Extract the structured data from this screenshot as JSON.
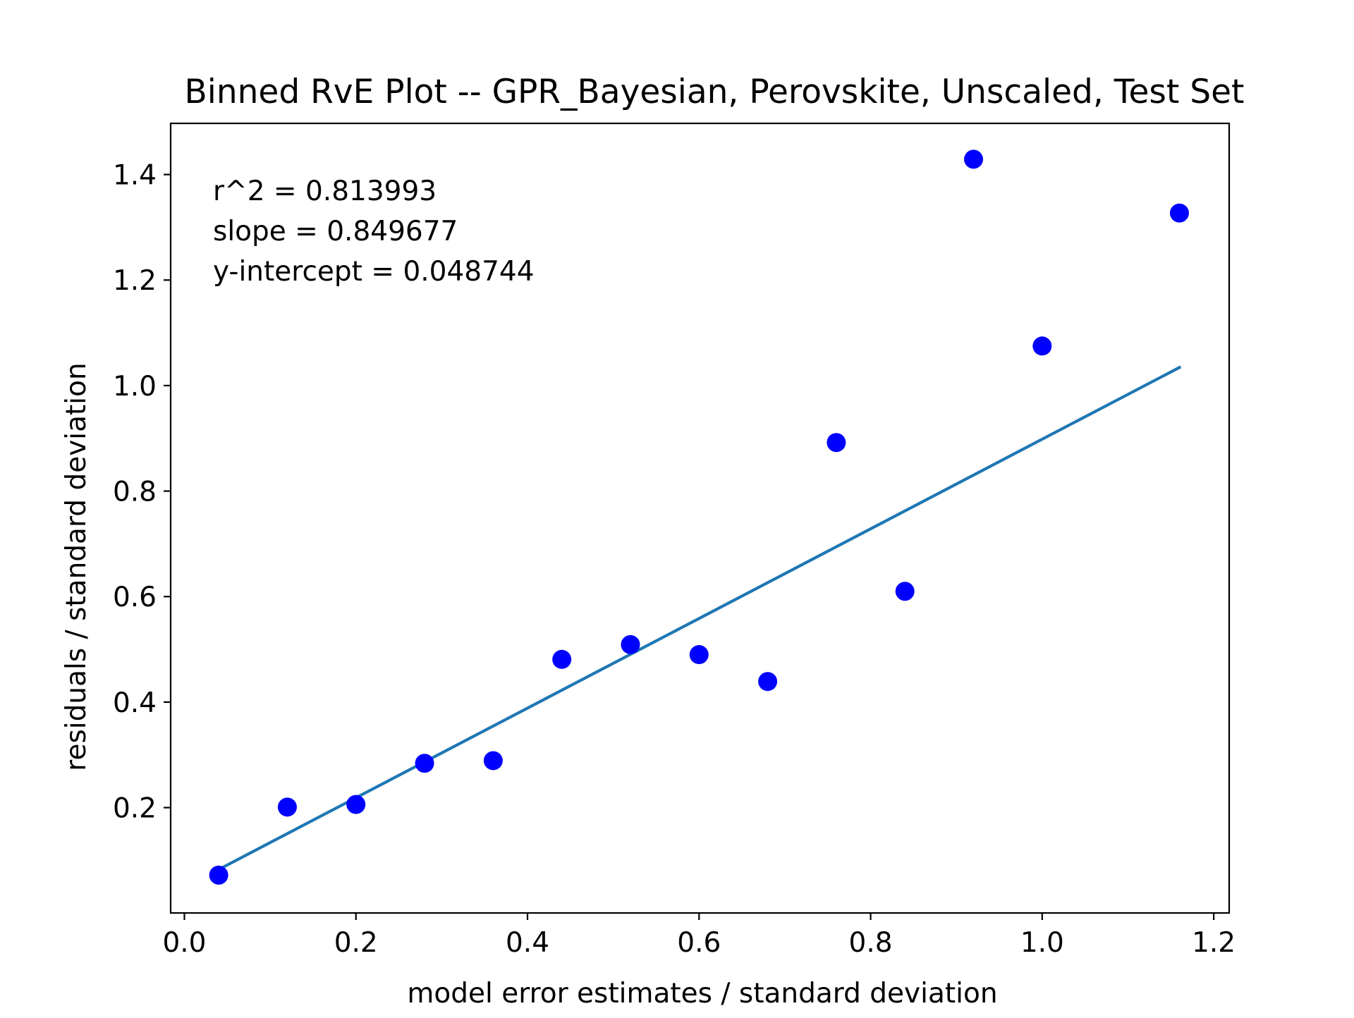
{
  "chart_data": {
    "type": "scatter",
    "title": "Binned RvE Plot -- GPR_Bayesian, Perovskite, Unscaled, Test Set",
    "xlabel": "model error estimates / standard deviation",
    "ylabel": "residuals / standard deviation",
    "xlim": [
      -0.016,
      1.218
    ],
    "ylim": [
      0.0003,
      1.497
    ],
    "xticks": [
      0.0,
      0.2,
      0.4,
      0.6,
      0.8,
      1.0,
      1.2
    ],
    "xtick_labels": [
      "0.0",
      "0.2",
      "0.4",
      "0.6",
      "0.8",
      "1.0",
      "1.2"
    ],
    "yticks": [
      0.2,
      0.4,
      0.6,
      0.8,
      1.0,
      1.2,
      1.4
    ],
    "ytick_labels": [
      "0.2",
      "0.4",
      "0.6",
      "0.8",
      "1.0",
      "1.2",
      "1.4"
    ],
    "grid": false,
    "legend": "none",
    "points": {
      "color": "#0000ff",
      "x": [
        0.04,
        0.12,
        0.2,
        0.28,
        0.36,
        0.44,
        0.52,
        0.6,
        0.68,
        0.76,
        0.84,
        0.92,
        1.0,
        1.16
      ],
      "y": [
        0.072,
        0.201,
        0.206,
        0.284,
        0.289,
        0.481,
        0.509,
        0.49,
        0.439,
        0.892,
        0.61,
        1.429,
        1.075,
        1.327
      ]
    },
    "fit_line": {
      "color": "#1f77b4",
      "x": [
        0.04,
        1.16
      ],
      "y": [
        0.0827,
        1.0343
      ]
    },
    "annotations": [
      "r^2 = 0.813993",
      "slope = 0.849677",
      "y-intercept = 0.048744"
    ]
  }
}
